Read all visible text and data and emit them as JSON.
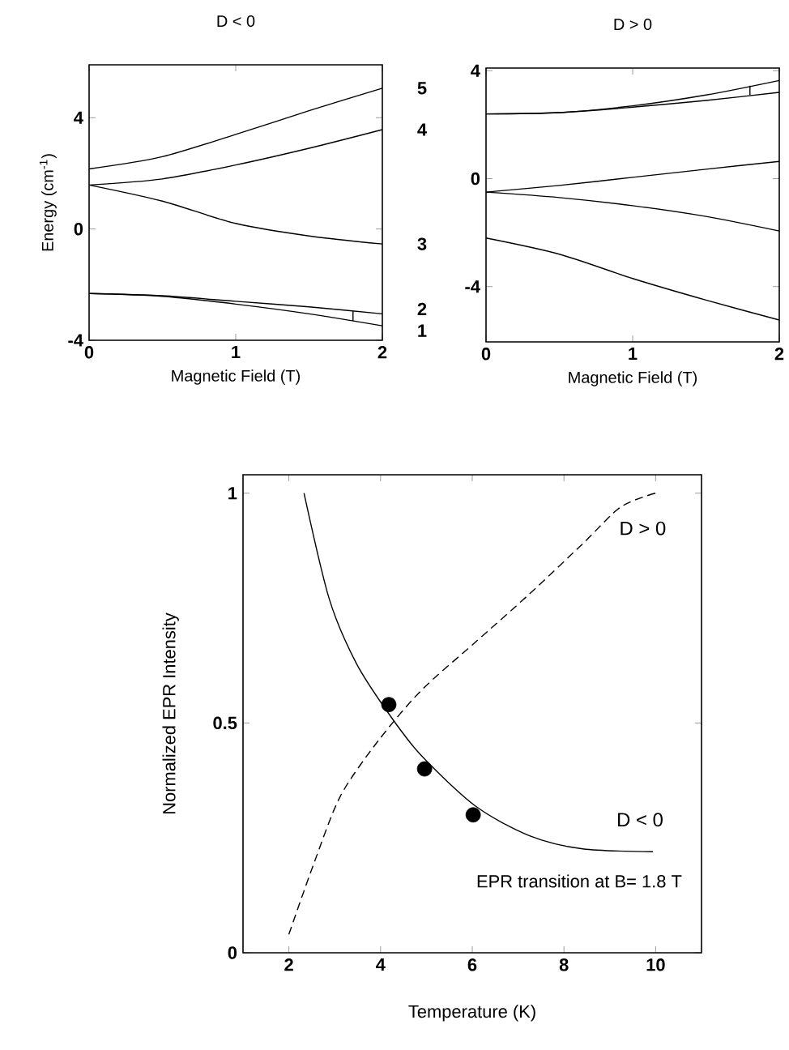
{
  "chart_data": [
    {
      "type": "line",
      "title": "D < 0",
      "xlabel": "Magnetic Field (T)",
      "ylabel": "Energy (cm$^{-1}$)",
      "x": [
        0,
        0.5,
        1,
        1.5,
        2
      ],
      "xlim": [
        0,
        2
      ],
      "ylim": [
        -4,
        5.9
      ],
      "xticks": [
        0,
        1,
        2
      ],
      "yticks": [
        -4,
        0,
        4
      ],
      "legend": "right",
      "grid": false,
      "series": [
        {
          "name": "5",
          "color": "#000000",
          "values": [
            2.16,
            2.6,
            3.4,
            4.25,
            5.06
          ]
        },
        {
          "name": "4",
          "color": "#000000",
          "values": [
            1.58,
            1.8,
            2.3,
            2.9,
            3.57
          ]
        },
        {
          "name": "3",
          "color": "#000000",
          "values": [
            1.58,
            1.0,
            0.2,
            -0.25,
            -0.54
          ]
        },
        {
          "name": "2",
          "color": "#000000",
          "values": [
            -2.32,
            -2.4,
            -2.6,
            -2.8,
            -3.05
          ]
        },
        {
          "name": "1",
          "color": "#000000",
          "values": [
            -2.32,
            -2.42,
            -2.7,
            -3.05,
            -3.48
          ]
        },
        {
          "color": "#000000",
          "x": [
            1.8,
            1.8
          ],
          "values": [
            -3.3,
            -2.95
          ]
        }
      ]
    },
    {
      "type": "line",
      "title": "D > 0",
      "xlabel": "Magnetic Field (T)",
      "x": [
        0,
        0.5,
        1,
        1.5,
        2
      ],
      "xlim": [
        0,
        2
      ],
      "ylim": [
        -6.05,
        4.1
      ],
      "xticks": [
        0,
        1,
        2
      ],
      "yticks": [
        -4,
        0,
        4
      ],
      "legend": false,
      "grid": false,
      "series": [
        {
          "color": "#000000",
          "values": [
            2.4,
            2.45,
            2.7,
            3.1,
            3.64
          ]
        },
        {
          "color": "#000000",
          "values": [
            2.4,
            2.45,
            2.65,
            2.9,
            3.2
          ]
        },
        {
          "color": "#000000",
          "values": [
            -0.5,
            -0.25,
            0.05,
            0.35,
            0.64
          ]
        },
        {
          "color": "#000000",
          "values": [
            -0.5,
            -0.7,
            -1.0,
            -1.4,
            -1.94
          ]
        },
        {
          "color": "#000000",
          "values": [
            -2.2,
            -2.8,
            -3.7,
            -4.5,
            -5.24
          ]
        },
        {
          "color": "#000000",
          "x": [
            1.8,
            1.8
          ],
          "values": [
            3.1,
            3.45
          ]
        }
      ]
    },
    {
      "type": "line",
      "xlabel": "Temperature (K)",
      "ylabel": "Normalized EPR Intensity",
      "xlim": [
        1,
        11
      ],
      "ylim": [
        0,
        1.04
      ],
      "xticks": [
        2,
        4,
        6,
        8,
        10
      ],
      "yticks": [
        0,
        0.5,
        1
      ],
      "legend": false,
      "grid": false,
      "series": [
        {
          "name": "D > 0",
          "color": "#000000",
          "line_style": "dashed",
          "marker": "none",
          "x": [
            2.0,
            2.53,
            3.12,
            3.94,
            4.88,
            6.06,
            7.24,
            8.41,
            9.24,
            10.0
          ],
          "values": [
            0.04,
            0.19,
            0.34,
            0.46,
            0.57,
            0.675,
            0.78,
            0.89,
            0.97,
            1.0
          ]
        },
        {
          "name": "D < 0",
          "color": "#000000",
          "line_style": "solid",
          "marker": "none",
          "x": [
            2.33,
            2.88,
            3.47,
            4.18,
            4.88,
            6.06,
            7.24,
            8.41,
            9.94
          ],
          "values": [
            1.0,
            0.77,
            0.63,
            0.52,
            0.43,
            0.32,
            0.255,
            0.226,
            0.22
          ]
        },
        {
          "type": "scatter",
          "color": "#000000",
          "marker": "circle",
          "x": [
            4.18,
            4.96,
            6.02
          ],
          "values": [
            0.54,
            0.4,
            0.3
          ]
        }
      ],
      "annotations": [
        "EPR transition at B= 1.8 T"
      ]
    }
  ]
}
